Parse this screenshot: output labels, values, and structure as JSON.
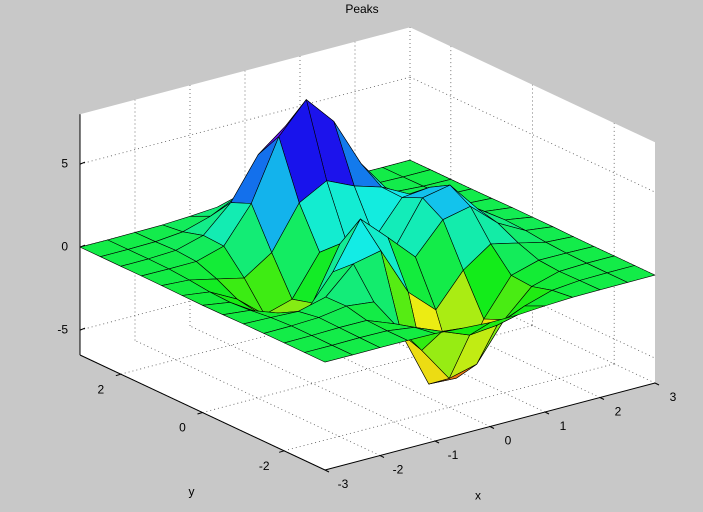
{
  "chart_data": {
    "type": "surface",
    "title": "Peaks",
    "xlabel": "x",
    "ylabel": "y",
    "x": [
      -3,
      -2.5,
      -2,
      -1.5,
      -1,
      -0.5,
      0,
      0.5,
      1,
      1.5,
      2,
      2.5,
      3
    ],
    "y": [
      -3,
      -2.5,
      -2,
      -1.5,
      -1,
      -0.5,
      0,
      0.5,
      1,
      1.5,
      2,
      2.5,
      3
    ],
    "z": [
      [
        0,
        0,
        0,
        0,
        -0.03,
        -0.14,
        -0.24,
        -0.22,
        -0.11,
        -0.03,
        -0.01,
        0,
        0
      ],
      [
        0,
        0,
        0.02,
        0,
        -0.23,
        -0.91,
        -1.57,
        -1.41,
        -0.69,
        -0.18,
        -0.03,
        0,
        0
      ],
      [
        0,
        0.01,
        0.05,
        0.05,
        -0.59,
        -2.63,
        -4.76,
        -4.34,
        -2.1,
        -0.53,
        -0.06,
        0,
        0
      ],
      [
        0,
        0.01,
        0.08,
        0.33,
        0.15,
        -2.19,
        -5.68,
        -5.76,
        -2.63,
        -0.44,
        0.04,
        0.03,
        0
      ],
      [
        -0.01,
        -0.06,
        -0.13,
        0.3,
        1.86,
        2.22,
        -0.72,
        -2.22,
        -0.27,
        0.88,
        0.5,
        0.11,
        0.01
      ],
      [
        -0.03,
        -0.2,
        -0.8,
        -1.21,
        0.8,
        3.55,
        2,
        0.39,
        2.2,
        2.56,
        1.12,
        0.24,
        0.03
      ],
      [
        -0.04,
        -0.3,
        -1.33,
        -2.77,
        -1.65,
        1.48,
        0.98,
        0.38,
        2.94,
        3.27,
        1.41,
        0.3,
        0.03
      ],
      [
        -0.03,
        -0.25,
        -1.12,
        -2.49,
        -2,
        0.39,
        0.46,
        0.38,
        2.38,
        2.56,
        1.09,
        0.23,
        0.03
      ],
      [
        -0.01,
        -0.11,
        -0.48,
        -0.86,
        0.23,
        2.79,
        3.69,
        2.94,
        2.43,
        1.58,
        0.58,
        0.11,
        0.01
      ],
      [
        0,
        -0.02,
        -0.01,
        0.48,
        2.61,
        6.2,
        8,
        6.25,
        3.25,
        1.19,
        0.29,
        0.05,
        0
      ],
      [
        0,
        0.01,
        0.08,
        0.55,
        2.09,
        4.55,
        5.85,
        4.56,
        2.21,
        0.68,
        0.13,
        0.02,
        0
      ],
      [
        0,
        0,
        0.03,
        0.19,
        0.69,
        1.47,
        1.88,
        1.47,
        0.7,
        0.21,
        0.04,
        0,
        0
      ],
      [
        0,
        0,
        0.01,
        0.03,
        0.11,
        0.23,
        0.3,
        0.23,
        0.11,
        0.03,
        0.01,
        0,
        0
      ]
    ],
    "xlim": [
      -3,
      3
    ],
    "ylim": [
      -3,
      3
    ],
    "zlim": [
      -6.5,
      8
    ],
    "xticks": [
      -3,
      -2,
      -1,
      0,
      1,
      2,
      3
    ],
    "yticks": [
      -2,
      0,
      2
    ],
    "zticks": [
      -5,
      0,
      5
    ],
    "grid": true,
    "colormap": "hsv",
    "edge_color": "#000000"
  }
}
